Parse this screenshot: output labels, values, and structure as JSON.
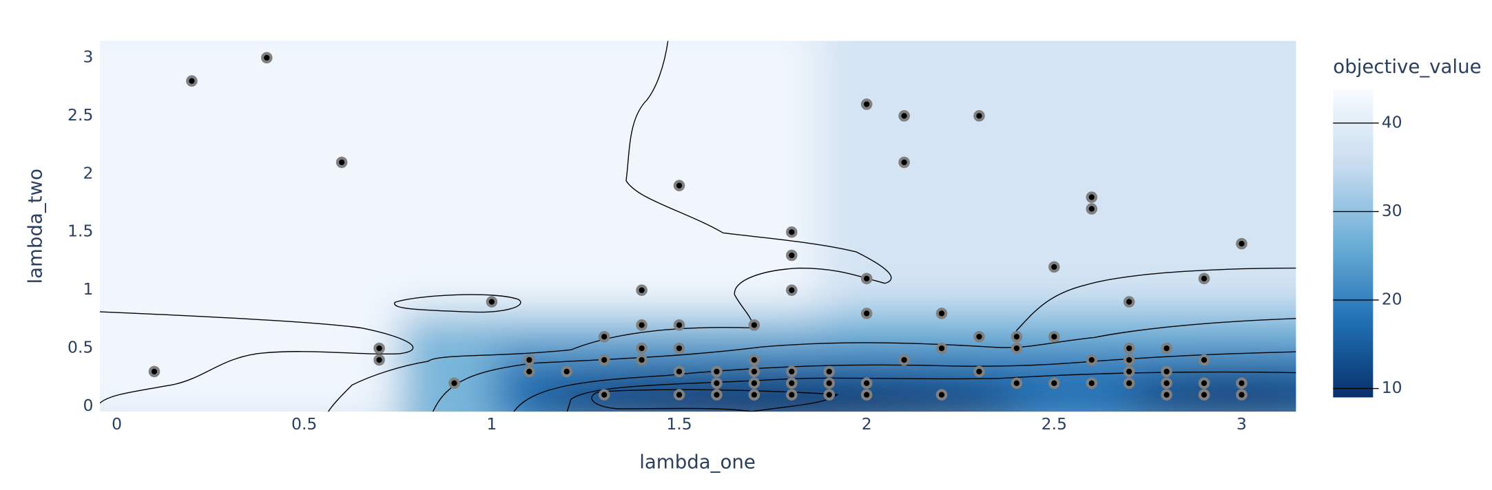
{
  "chart_data": {
    "type": "contour",
    "x_label": "lambda_one",
    "y_label": "lambda_two",
    "x": [
      0.1,
      0.2,
      0.4,
      0.6,
      0.7,
      0.7,
      0.9,
      1.0,
      1.1,
      1.1,
      1.2,
      1.3,
      1.3,
      1.3,
      1.4,
      1.4,
      1.4,
      1.4,
      1.5,
      1.5,
      1.5,
      1.5,
      1.5,
      1.6,
      1.6,
      1.6,
      1.7,
      1.7,
      1.7,
      1.7,
      1.7,
      1.8,
      1.8,
      1.8,
      1.8,
      1.8,
      1.8,
      1.9,
      1.9,
      1.9,
      2.0,
      2.0,
      2.0,
      2.0,
      2.0,
      2.1,
      2.1,
      2.1,
      2.2,
      2.2,
      2.2,
      2.3,
      2.3,
      2.3,
      2.4,
      2.4,
      2.4,
      2.5,
      2.5,
      2.5,
      2.6,
      2.6,
      2.6,
      2.6,
      2.7,
      2.7,
      2.7,
      2.7,
      2.7,
      2.8,
      2.8,
      2.8,
      2.8,
      2.9,
      2.9,
      2.9,
      2.9,
      3.0,
      3.0,
      3.0
    ],
    "y": [
      0.3,
      2.8,
      3.0,
      2.1,
      0.5,
      0.4,
      0.2,
      0.9,
      0.4,
      0.3,
      0.3,
      0.6,
      0.4,
      0.1,
      1.0,
      0.7,
      0.5,
      0.4,
      1.9,
      0.7,
      0.5,
      0.3,
      0.1,
      0.3,
      0.2,
      0.1,
      0.7,
      0.4,
      0.3,
      0.2,
      0.1,
      1.5,
      1.3,
      1.0,
      0.3,
      0.2,
      0.1,
      0.3,
      0.2,
      0.1,
      2.6,
      1.1,
      0.8,
      0.2,
      0.1,
      2.5,
      2.1,
      0.4,
      0.8,
      0.5,
      0.1,
      2.5,
      0.6,
      0.3,
      0.6,
      0.5,
      0.2,
      1.2,
      0.6,
      0.2,
      1.8,
      1.7,
      0.4,
      0.2,
      0.9,
      0.5,
      0.4,
      0.3,
      0.2,
      0.5,
      0.3,
      0.2,
      0.1,
      1.1,
      0.4,
      0.2,
      0.1,
      1.4,
      0.2,
      0.1
    ],
    "marker_color": "#000000",
    "marker_line_color": "#808080",
    "xlim": [
      -0.045,
      3.145
    ],
    "xticks": [
      0,
      0.5,
      1,
      1.5,
      2,
      2.5,
      3
    ],
    "ylim": [
      -0.045,
      3.145
    ],
    "yticks": [
      0,
      0.5,
      1,
      1.5,
      2,
      2.5,
      3
    ],
    "colorbar": {
      "title": "objective_value",
      "lim": [
        9,
        43.7
      ],
      "ticks": [
        10,
        20,
        30,
        40
      ],
      "colorscale": [
        "#08306b",
        "#2171b5",
        "#6baed6",
        "#c6dbef",
        "#f7fbff"
      ]
    }
  }
}
